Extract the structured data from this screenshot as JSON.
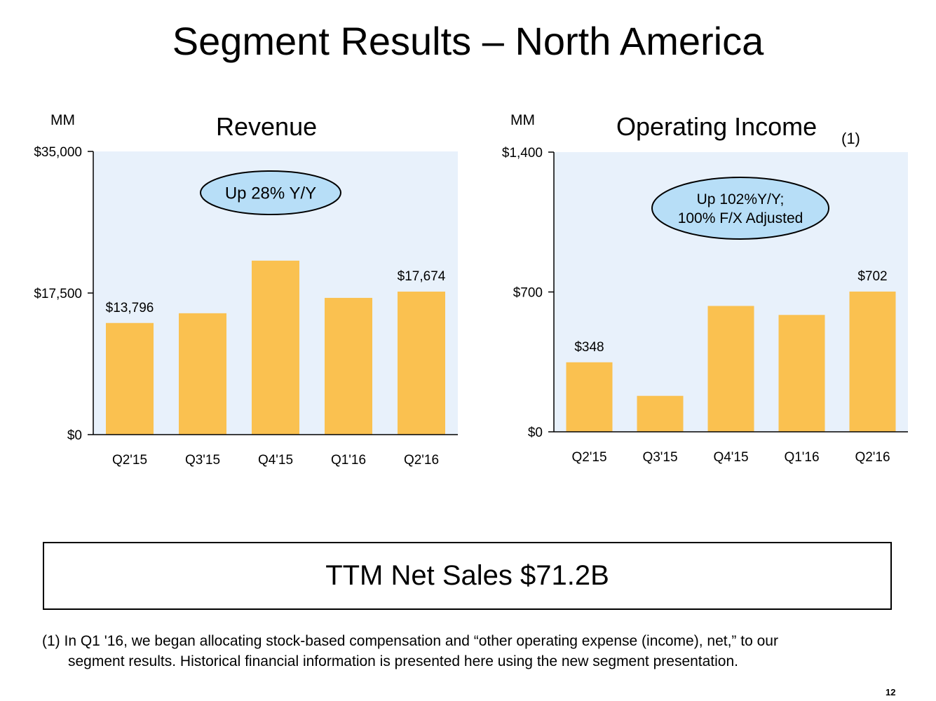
{
  "title": "Segment Results – North America",
  "charts": {
    "revenue": {
      "unit": "MM",
      "title": "Revenue",
      "callout": [
        "Up 28% Y/Y"
      ],
      "ticks": [
        "$35,000",
        "$17,500",
        "$0"
      ]
    },
    "operating_income": {
      "unit": "MM",
      "title": "Operating Income",
      "title_note": "(1)",
      "callout": [
        "Up 102%Y/Y;",
        "100% F/X Adjusted"
      ],
      "ticks": [
        "$1,400",
        "$700",
        "$0"
      ]
    }
  },
  "summary": "TTM Net Sales $71.2B",
  "footnote": {
    "line1": "(1) In Q1 '16, we began allocating stock-based compensation and “other operating expense (income), net,” to our",
    "line2": "segment results. Historical financial information is presented here using the new segment presentation."
  },
  "page_number": "12",
  "colors": {
    "bar": "#FAC150",
    "plot_bg": "#E8F1FB",
    "callout_fill": "#B7DEF7",
    "axis": "#000000"
  },
  "chart_data": [
    {
      "type": "bar",
      "title": "Revenue",
      "ylabel": "MM",
      "categories": [
        "Q2'15",
        "Q3'15",
        "Q4'15",
        "Q1'16",
        "Q2'16"
      ],
      "values": [
        13796,
        15000,
        21500,
        16900,
        17674
      ],
      "data_labels": [
        "$13,796",
        "",
        "",
        "",
        "$17,674"
      ],
      "ylim": [
        0,
        35000
      ],
      "yticks": [
        0,
        17500,
        35000
      ],
      "annotation": "Up 28% Y/Y",
      "grid": false,
      "legend": "none"
    },
    {
      "type": "bar",
      "title": "Operating Income",
      "ylabel": "MM",
      "categories": [
        "Q2'15",
        "Q3'15",
        "Q4'15",
        "Q1'16",
        "Q2'16"
      ],
      "values": [
        348,
        180,
        630,
        585,
        702
      ],
      "data_labels": [
        "$348",
        "",
        "",
        "",
        "$702"
      ],
      "ylim": [
        0,
        1400
      ],
      "yticks": [
        0,
        700,
        1400
      ],
      "annotation": "Up 102%Y/Y; 100% F/X Adjusted",
      "grid": false,
      "legend": "none"
    }
  ]
}
